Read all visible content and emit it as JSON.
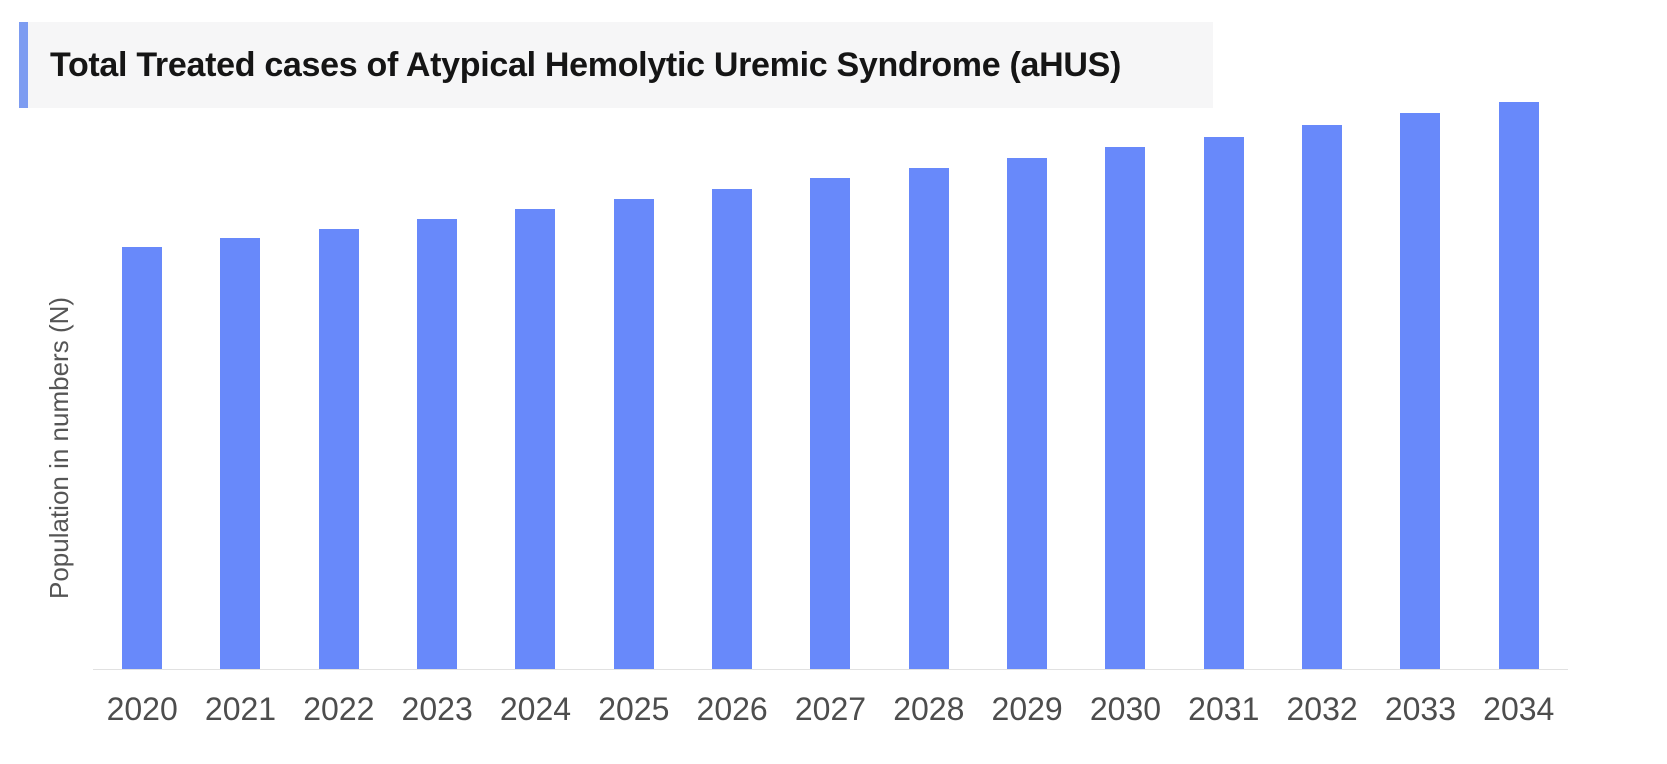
{
  "header": {
    "title": "Total Treated cases of Atypical Hemolytic Uremic Syndrome (aHUS)"
  },
  "chart_data": {
    "type": "bar",
    "title": "Total Treated cases of Atypical Hemolytic Uremic Syndrome (aHUS)",
    "xlabel": "",
    "ylabel": "Population in numbers (N)",
    "categories": [
      "2020",
      "2021",
      "2022",
      "2023",
      "2024",
      "2025",
      "2026",
      "2027",
      "2028",
      "2029",
      "2030",
      "2031",
      "2032",
      "2033",
      "2034"
    ],
    "values": [
      422,
      431,
      440,
      450,
      460,
      470,
      480,
      491,
      501,
      511,
      522,
      532,
      544,
      556,
      567
    ],
    "value_note": "y-axis shows no numeric tick labels; values are relative bar heights (pixels), steady ~2%/yr growth",
    "ylim": [
      0,
      580
    ],
    "grid": false,
    "legend": false,
    "y_tick_labels_visible": false,
    "colors": {
      "bar": "#6889fa",
      "title_accent": "#7d9cf1",
      "title_background": "#f6f6f7",
      "title_text": "#151515",
      "axis_line": "#e1e1e1",
      "tick_label_text": "#4d4d4d",
      "y_axis_label_text": "#555555",
      "background": "#ffffff"
    }
  }
}
